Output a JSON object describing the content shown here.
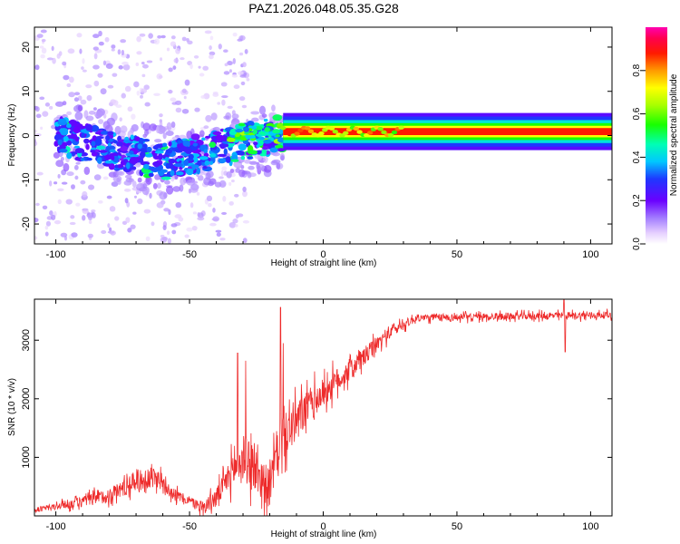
{
  "title": "PAZ1.2026.048.05.35.G28",
  "chart_data": [
    {
      "type": "heatmap",
      "xlabel": "Height of straight line (km)",
      "ylabel": "Frequency (Hz)",
      "xlim": [
        -108,
        108
      ],
      "ylim": [
        -24.5,
        24.5
      ],
      "xticks": [
        -100,
        -50,
        0,
        50,
        100
      ],
      "yticks": [
        -20,
        -10,
        0,
        10,
        20
      ],
      "colorbar": {
        "label": "Normalized spectral amplitude",
        "range": [
          0.0,
          1.0
        ],
        "ticks": [
          "0.0",
          "0.2",
          "0.4",
          "0.6",
          "0.8"
        ],
        "tick_values": [
          0.0,
          0.2,
          0.4,
          0.6,
          0.8
        ]
      },
      "features": [
        {
          "name": "stable carrier band",
          "x_range": [
            -15,
            108
          ],
          "center_frequency_hz": 1,
          "peak_amplitude": 1.0
        },
        {
          "name": "tilted occulted band",
          "x_range": [
            -100,
            -15
          ],
          "center_frequency_hz_start": 0,
          "center_frequency_hz_min": -6,
          "peak_amplitude": 0.5
        },
        {
          "name": "diffuse scatter",
          "x_range": [
            -108,
            -30
          ],
          "frequency_range_hz": [
            -24,
            24
          ],
          "peak_amplitude": 0.1
        }
      ]
    },
    {
      "type": "line",
      "xlabel": "Height of straight line (km)",
      "ylabel": "SNR (10 * v/v)",
      "xlim": [
        -108,
        108
      ],
      "ylim": [
        0,
        3700
      ],
      "xticks": [
        -100,
        -50,
        0,
        50,
        100
      ],
      "yticks": [
        1000,
        2000,
        3000
      ],
      "color": "#ee2b2b",
      "profile": [
        {
          "x": -108,
          "y": 100
        },
        {
          "x": -95,
          "y": 200
        },
        {
          "x": -80,
          "y": 350
        },
        {
          "x": -70,
          "y": 600
        },
        {
          "x": -62,
          "y": 650
        },
        {
          "x": -55,
          "y": 350
        },
        {
          "x": -45,
          "y": 150
        },
        {
          "x": -40,
          "y": 300
        },
        {
          "x": -35,
          "y": 700
        },
        {
          "x": -30,
          "y": 1000
        },
        {
          "x": -25,
          "y": 750
        },
        {
          "x": -20,
          "y": 450
        },
        {
          "x": -17,
          "y": 1200
        },
        {
          "x": -12,
          "y": 1500
        },
        {
          "x": -5,
          "y": 1900
        },
        {
          "x": 5,
          "y": 2300
        },
        {
          "x": 15,
          "y": 2700
        },
        {
          "x": 25,
          "y": 3150
        },
        {
          "x": 35,
          "y": 3380
        },
        {
          "x": 60,
          "y": 3400
        },
        {
          "x": 90,
          "y": 3420
        },
        {
          "x": 108,
          "y": 3430
        }
      ],
      "noise_amplitude": [
        {
          "x": -108,
          "a": 60
        },
        {
          "x": -85,
          "a": 200
        },
        {
          "x": -65,
          "a": 350
        },
        {
          "x": -50,
          "a": 120
        },
        {
          "x": -38,
          "a": 350
        },
        {
          "x": -28,
          "a": 800
        },
        {
          "x": -20,
          "a": 600
        },
        {
          "x": -15,
          "a": 700
        },
        {
          "x": 0,
          "a": 450
        },
        {
          "x": 20,
          "a": 250
        },
        {
          "x": 35,
          "a": 110
        },
        {
          "x": 108,
          "a": 110
        }
      ],
      "spikes": [
        {
          "x": -32,
          "y": 2780
        },
        {
          "x": -29,
          "y": 2650
        },
        {
          "x": -16,
          "y": 3560
        },
        {
          "x": -15,
          "y": 2950
        },
        {
          "x": 90,
          "y": 3700
        },
        {
          "x": 90.5,
          "y": 2800
        }
      ]
    }
  ]
}
